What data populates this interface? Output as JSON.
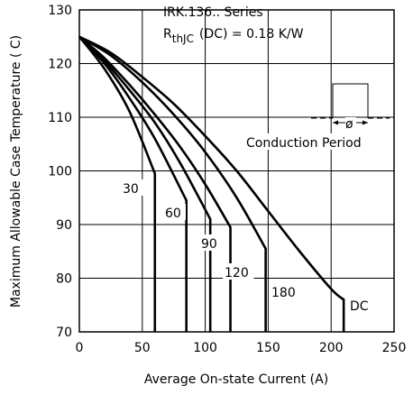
{
  "chart_data": {
    "type": "line",
    "title_line1": "IRK.136.. Series",
    "title_line2_prefix": "R",
    "title_line2_sub": "thJC",
    "title_line2_suffix": "(DC) = 0.18 K/W",
    "inset_label": "Conduction Period",
    "inset_symbol": "ø",
    "xlabel": "Average On-state Current (A)",
    "ylabel": "Maximum Allowable Case Temperature ( C)",
    "xlim": [
      0,
      250
    ],
    "ylim": [
      70,
      130
    ],
    "x_ticks": [
      0,
      50,
      100,
      150,
      200,
      250
    ],
    "y_ticks": [
      70,
      80,
      90,
      100,
      110,
      120,
      130
    ],
    "grid": true,
    "series": [
      {
        "name": "30",
        "points": [
          [
            0,
            125
          ],
          [
            20,
            119
          ],
          [
            40,
            111
          ],
          [
            60,
            99.5
          ],
          [
            60,
            70
          ]
        ]
      },
      {
        "name": "60",
        "points": [
          [
            0,
            125
          ],
          [
            20,
            120
          ],
          [
            40,
            113.5
          ],
          [
            60,
            106
          ],
          [
            85,
            94.5
          ],
          [
            85,
            70
          ]
        ]
      },
      {
        "name": "90",
        "points": [
          [
            0,
            125
          ],
          [
            20,
            120.5
          ],
          [
            40,
            115
          ],
          [
            60,
            109
          ],
          [
            80,
            101.5
          ],
          [
            104,
            91
          ],
          [
            104,
            70
          ]
        ]
      },
      {
        "name": "120",
        "points": [
          [
            0,
            125
          ],
          [
            20,
            121
          ],
          [
            40,
            116
          ],
          [
            60,
            110.5
          ],
          [
            80,
            104.5
          ],
          [
            100,
            97.5
          ],
          [
            120,
            89.5
          ],
          [
            120,
            70
          ]
        ]
      },
      {
        "name": "180",
        "points": [
          [
            0,
            125
          ],
          [
            25,
            121.5
          ],
          [
            50,
            116.5
          ],
          [
            75,
            110.5
          ],
          [
            100,
            103.5
          ],
          [
            125,
            95
          ],
          [
            148,
            85.5
          ],
          [
            148,
            70
          ]
        ]
      },
      {
        "name": "DC",
        "points": [
          [
            0,
            125
          ],
          [
            25,
            122
          ],
          [
            50,
            117.5
          ],
          [
            75,
            112.5
          ],
          [
            100,
            106.5
          ],
          [
            125,
            100
          ],
          [
            150,
            92.5
          ],
          [
            175,
            85
          ],
          [
            200,
            78
          ],
          [
            210,
            76
          ],
          [
            210,
            70
          ]
        ]
      }
    ]
  }
}
